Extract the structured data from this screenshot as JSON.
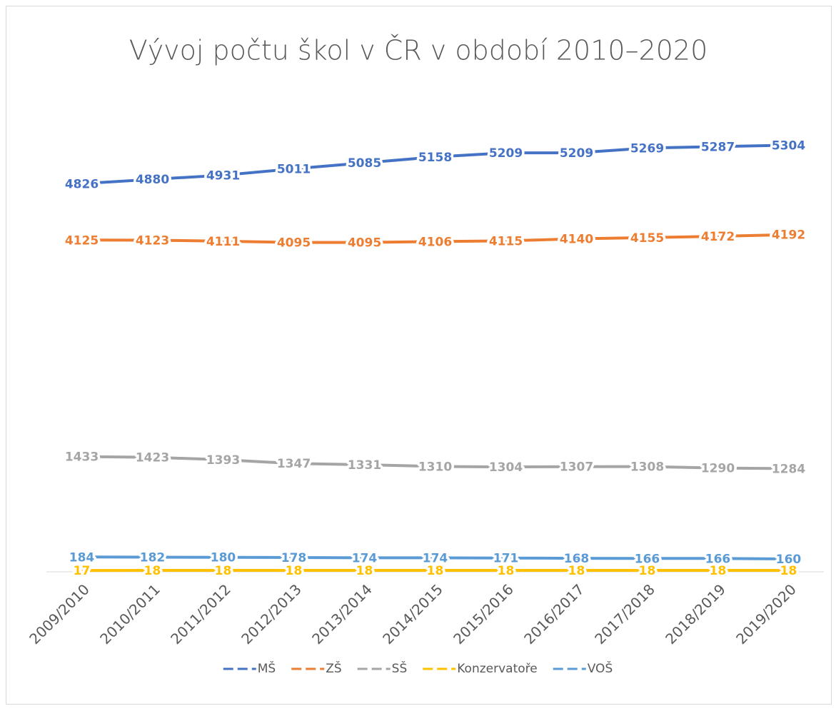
{
  "chart_data": {
    "type": "line",
    "title": "Vývoj počtu škol v ČR v období 2010–2020",
    "categories": [
      "2009/2010",
      "2010/2011",
      "2011/2012",
      "2012/2013",
      "2013/2014",
      "2014/2015",
      "2015/2016",
      "2016/2017",
      "2017/2018",
      "2018/2019",
      "2019/2020"
    ],
    "series": [
      {
        "name": "MŠ",
        "color": "#4472c4",
        "values": [
          4826,
          4880,
          4931,
          5011,
          5085,
          5158,
          5209,
          5209,
          5269,
          5287,
          5304
        ]
      },
      {
        "name": "ZŠ",
        "color": "#ed7d31",
        "values": [
          4125,
          4123,
          4111,
          4095,
          4095,
          4106,
          4115,
          4140,
          4155,
          4172,
          4192
        ]
      },
      {
        "name": "SŠ",
        "color": "#a5a5a5",
        "values": [
          1433,
          1423,
          1393,
          1347,
          1331,
          1310,
          1304,
          1307,
          1308,
          1290,
          1284
        ]
      },
      {
        "name": "Konzervatoře",
        "color": "#ffc000",
        "values": [
          17,
          18,
          18,
          18,
          18,
          18,
          18,
          18,
          18,
          18,
          18
        ]
      },
      {
        "name": "VOŠ",
        "color": "#5b9bd5",
        "values": [
          184,
          182,
          180,
          178,
          174,
          174,
          171,
          168,
          166,
          166,
          160
        ]
      }
    ],
    "ylim": [
      0,
      6000
    ],
    "legend": "bottom"
  }
}
